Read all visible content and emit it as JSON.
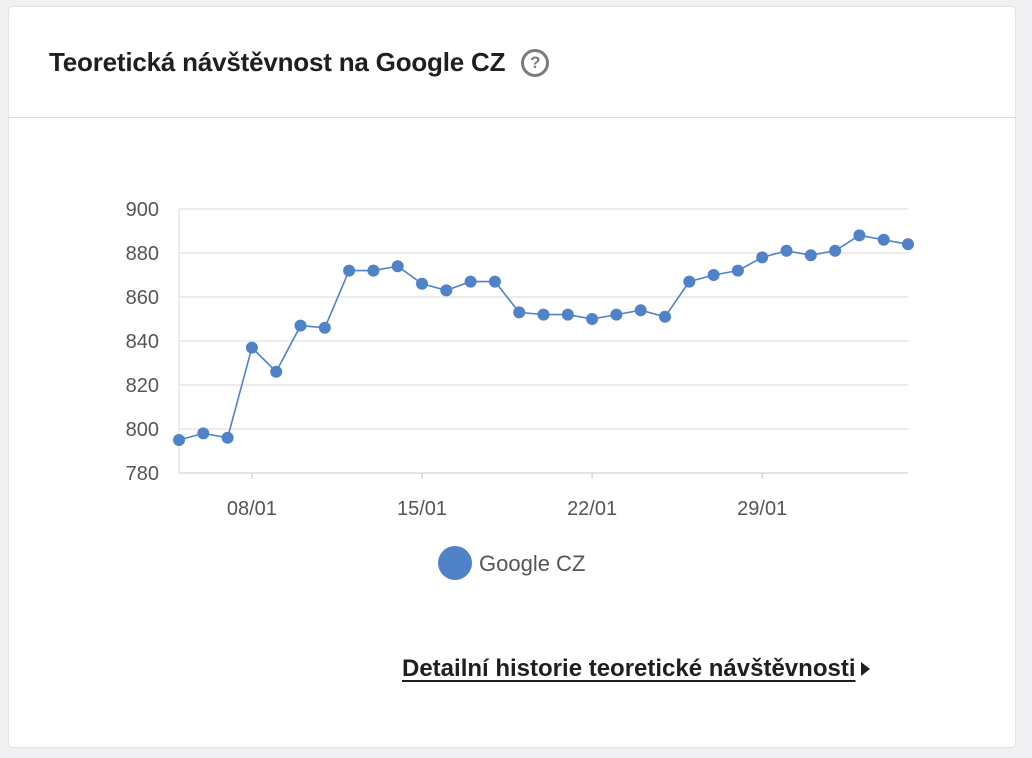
{
  "card": {
    "title": "Teoretická návštěvnost na Google CZ",
    "help_icon": "question-circle-icon",
    "link_text": "Detailní historie teoretické návštěvnosti",
    "link_icon": "triangle-right-icon"
  },
  "colors": {
    "series": "#5082c8",
    "grid": "#dadada",
    "axis_text": "#555555",
    "title_text": "#1f1f23"
  },
  "chart_data": {
    "type": "line",
    "title": "",
    "xlabel": "",
    "ylabel": "",
    "ylim": [
      780,
      900
    ],
    "yticks": [
      780,
      800,
      820,
      840,
      860,
      880,
      900
    ],
    "xticks": [
      {
        "label": "08/01",
        "index": 3
      },
      {
        "label": "15/01",
        "index": 10
      },
      {
        "label": "22/01",
        "index": 17
      },
      {
        "label": "29/01",
        "index": 24
      }
    ],
    "grid": true,
    "legend": "bottom-center",
    "series": [
      {
        "name": "Google CZ",
        "values": [
          795,
          798,
          796,
          837,
          826,
          847,
          846,
          872,
          872,
          874,
          866,
          863,
          867,
          867,
          853,
          852,
          852,
          850,
          852,
          854,
          851,
          867,
          870,
          872,
          878,
          881,
          879,
          881,
          888,
          886,
          884
        ]
      }
    ]
  }
}
